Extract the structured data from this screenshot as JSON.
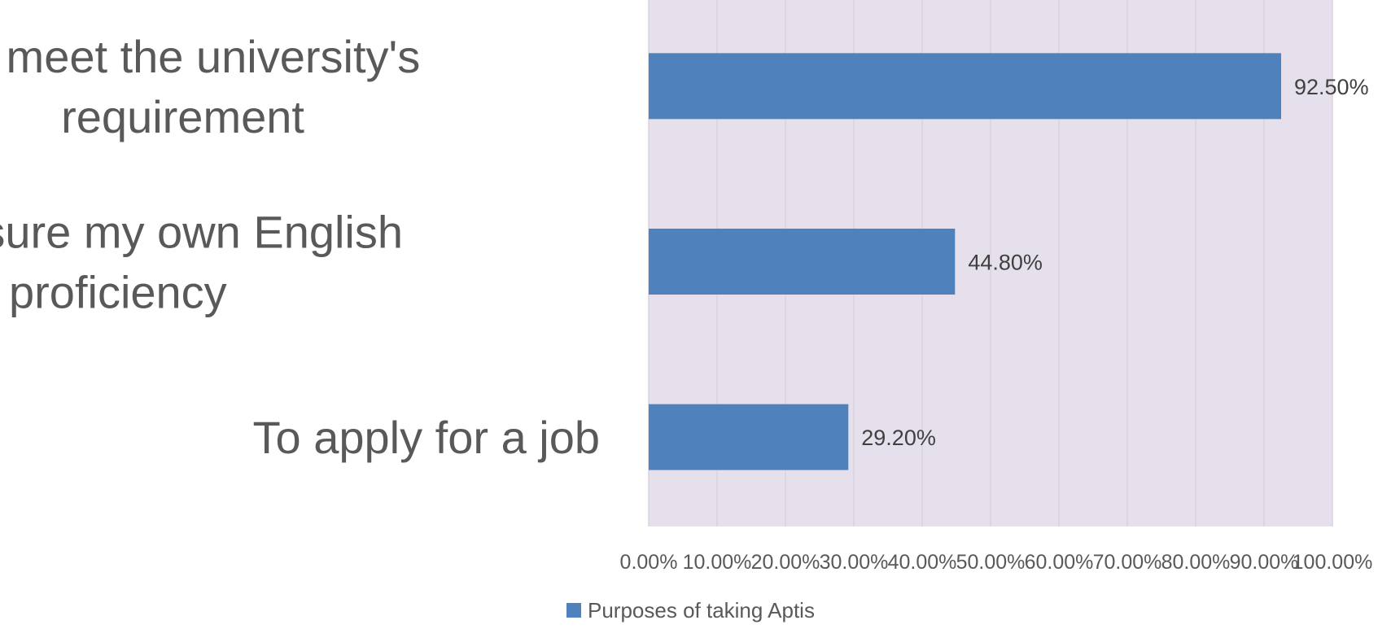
{
  "chart_data": {
    "type": "bar",
    "orientation": "horizontal",
    "categories": [
      "To meet the university's requirement",
      "To measure my own English proficiency",
      "To apply for a job"
    ],
    "category_lines": [
      [
        "To meet the university's",
        "requirement"
      ],
      [
        "To measure my own English",
        "proficiency"
      ],
      [
        "To apply for a job"
      ]
    ],
    "series": [
      {
        "name": "Purposes of taking Aptis",
        "values": [
          92.5,
          44.8,
          29.2
        ],
        "color": "#4F81BD"
      }
    ],
    "data_labels": [
      "92.50%",
      "44.80%",
      "29.20%"
    ],
    "x_ticks": [
      "0.00%",
      "10.00%",
      "20.00%",
      "30.00%",
      "40.00%",
      "50.00%",
      "60.00%",
      "70.00%",
      "80.00%",
      "90.00%",
      "100.00%"
    ],
    "xlim": [
      0,
      100
    ],
    "grid": true,
    "legend": {
      "position": "bottom",
      "label": "Purposes of taking Aptis"
    },
    "colors": {
      "plot_background": "#E6E0EC",
      "gridline": "#D9D3DF",
      "bar": "#4F81BD"
    }
  }
}
